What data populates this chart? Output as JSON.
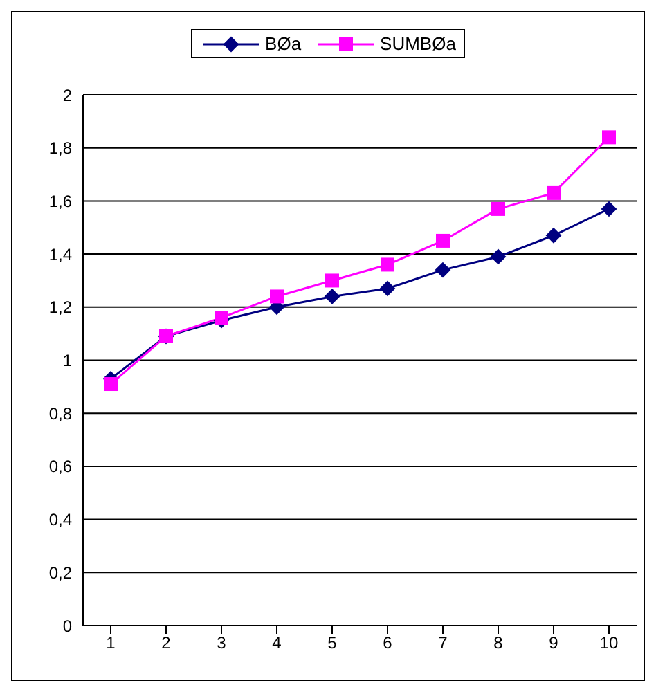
{
  "chart_data": {
    "type": "line",
    "categories": [
      "1",
      "2",
      "3",
      "4",
      "5",
      "6",
      "7",
      "8",
      "9",
      "10"
    ],
    "series": [
      {
        "name": "BØa",
        "color": "#000080",
        "marker": "diamond",
        "values": [
          0.93,
          1.09,
          1.15,
          1.2,
          1.24,
          1.27,
          1.34,
          1.39,
          1.47,
          1.57
        ]
      },
      {
        "name": "SUMBØa",
        "color": "#ff00ff",
        "marker": "square",
        "values": [
          0.91,
          1.09,
          1.16,
          1.24,
          1.3,
          1.36,
          1.45,
          1.57,
          1.63,
          1.84
        ]
      }
    ],
    "ylim": [
      0,
      2
    ],
    "yticks": [
      0,
      {
        "value": 0.2,
        "label": "0,2"
      },
      {
        "value": 0.4,
        "label": "0,4"
      },
      {
        "value": 0.6,
        "label": "0,6"
      },
      {
        "value": 0.8,
        "label": "0,8"
      },
      1,
      {
        "value": 1.2,
        "label": "1,2"
      },
      {
        "value": 1.4,
        "label": "1,4"
      },
      {
        "value": 1.6,
        "label": "1,6"
      },
      {
        "value": 1.8,
        "label": "1,8"
      },
      2
    ],
    "grid": "y",
    "legend": "top",
    "line_style": "solid"
  }
}
